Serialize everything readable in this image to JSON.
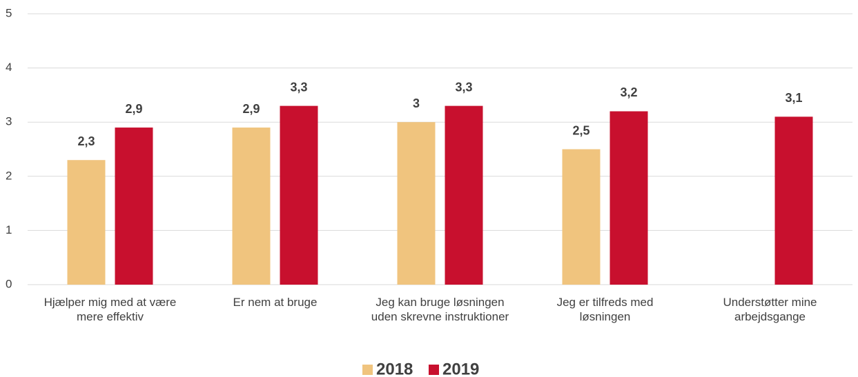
{
  "chart_data": {
    "type": "bar",
    "categories": [
      "Hjælper mig med at være mere effektiv",
      "Er nem at bruge",
      "Jeg kan bruge løsningen uden skrevne instruktioner",
      "Jeg er tilfreds med løsningen",
      "Understøtter mine arbejdsgange"
    ],
    "series": [
      {
        "name": "2018",
        "color": "#f0c47e",
        "values": [
          2.3,
          2.9,
          3,
          2.5,
          null
        ],
        "value_labels": [
          "2,3",
          "2,9",
          "3",
          "2,5",
          null
        ]
      },
      {
        "name": "2019",
        "color": "#c8102e",
        "values": [
          2.9,
          3.3,
          3.3,
          3.2,
          3.1
        ],
        "value_labels": [
          "2,9",
          "3,3",
          "3,3",
          "3,2",
          "3,1"
        ]
      }
    ],
    "ylim": [
      0,
      5
    ],
    "yticks": [
      0,
      1,
      2,
      3,
      4,
      5
    ],
    "grid": true,
    "legend": "bottom"
  }
}
